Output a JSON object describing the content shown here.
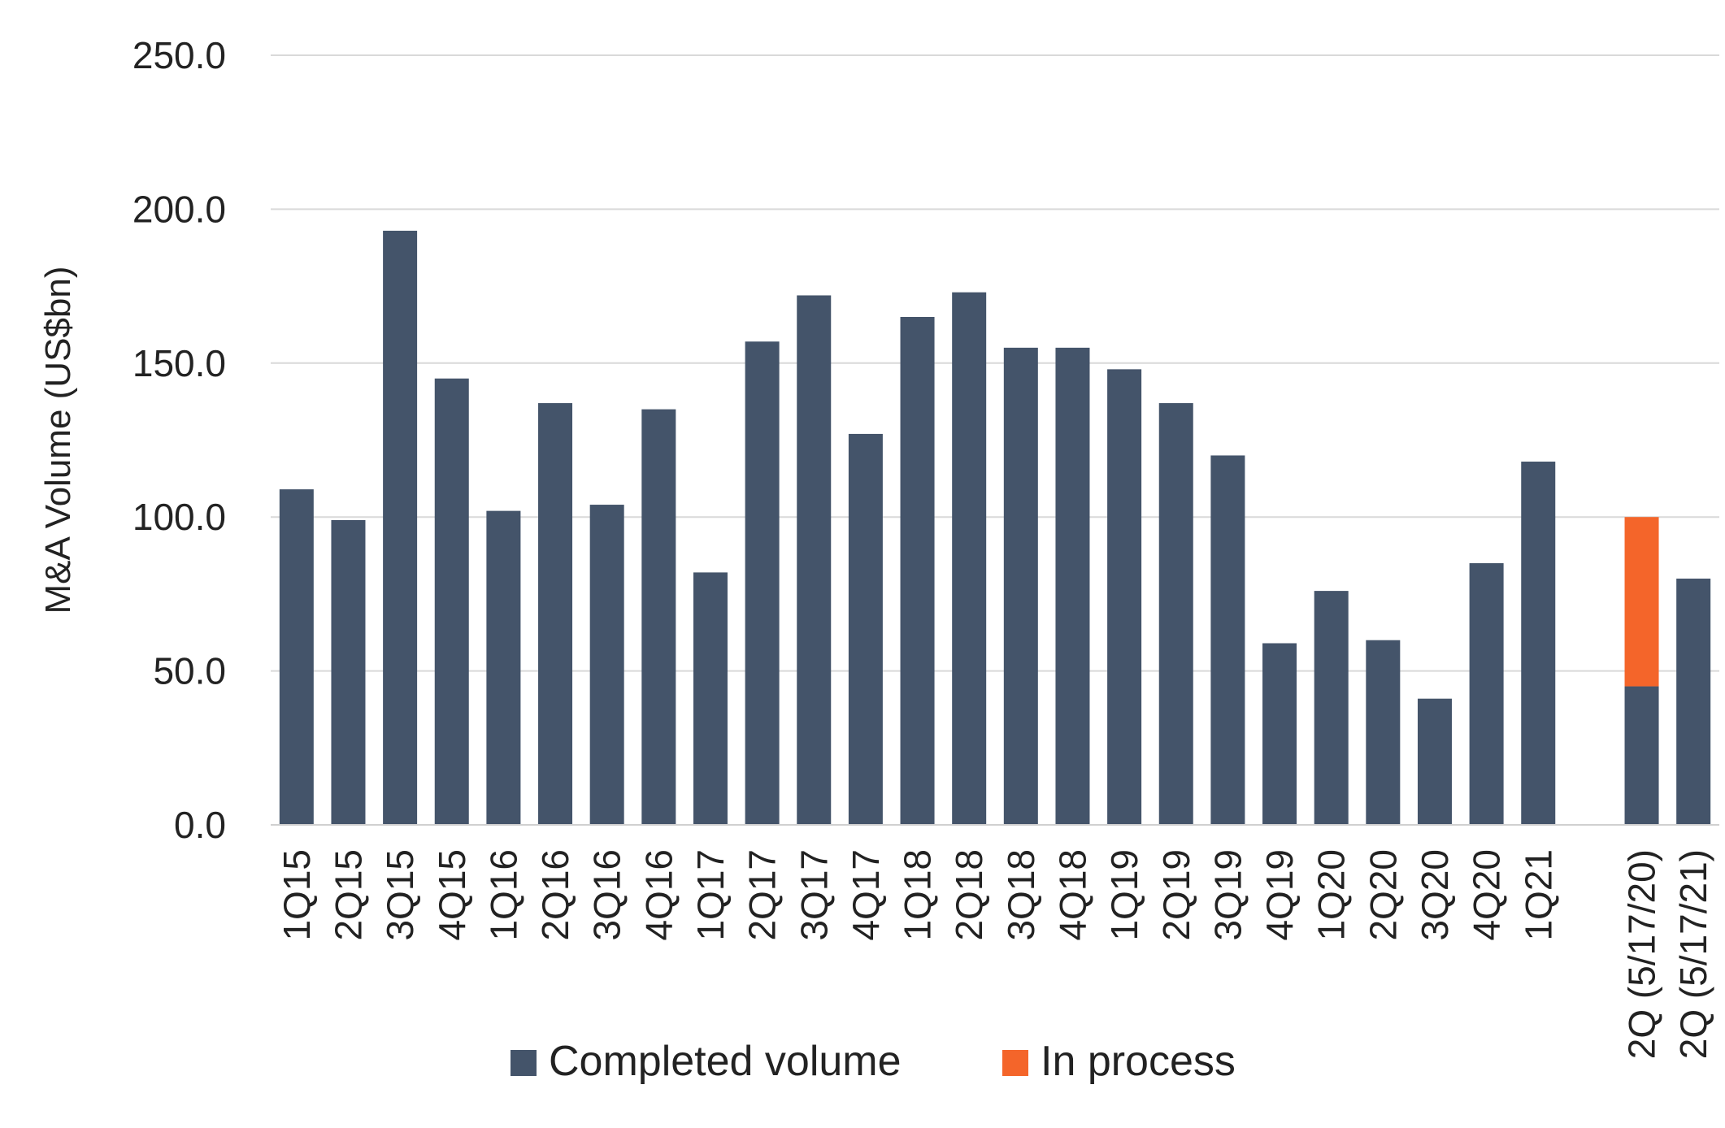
{
  "chart_data": {
    "type": "bar",
    "stacked": true,
    "title": "",
    "xlabel": "",
    "ylabel": "M&A Volume (US$bn)",
    "ylim": [
      0,
      250
    ],
    "yticks": [
      "0.0",
      "50.0",
      "100.0",
      "150.0",
      "200.0",
      "250.0"
    ],
    "grid": true,
    "legend_position": "bottom",
    "categories": [
      "1Q15",
      "2Q15",
      "3Q15",
      "4Q15",
      "1Q16",
      "2Q16",
      "3Q16",
      "4Q16",
      "1Q17",
      "2Q17",
      "3Q17",
      "4Q17",
      "1Q18",
      "2Q18",
      "3Q18",
      "4Q18",
      "1Q19",
      "2Q19",
      "3Q19",
      "4Q19",
      "1Q20",
      "2Q20",
      "3Q20",
      "4Q20",
      "1Q21",
      "",
      "2Q (5/17/20)",
      "2Q (5/17/21)"
    ],
    "series": [
      {
        "name": "Completed volume",
        "color": "#44546a",
        "values": [
          109,
          99,
          193,
          145,
          102,
          137,
          104,
          135,
          82,
          157,
          172,
          127,
          165,
          173,
          155,
          155,
          148,
          137,
          120,
          59,
          76,
          60,
          41,
          85,
          118,
          null,
          45,
          80
        ]
      },
      {
        "name": "In process",
        "color": "#f4652a",
        "values": [
          0,
          0,
          0,
          0,
          0,
          0,
          0,
          0,
          0,
          0,
          0,
          0,
          0,
          0,
          0,
          0,
          0,
          0,
          0,
          0,
          0,
          0,
          0,
          0,
          0,
          null,
          55,
          0
        ]
      }
    ]
  }
}
